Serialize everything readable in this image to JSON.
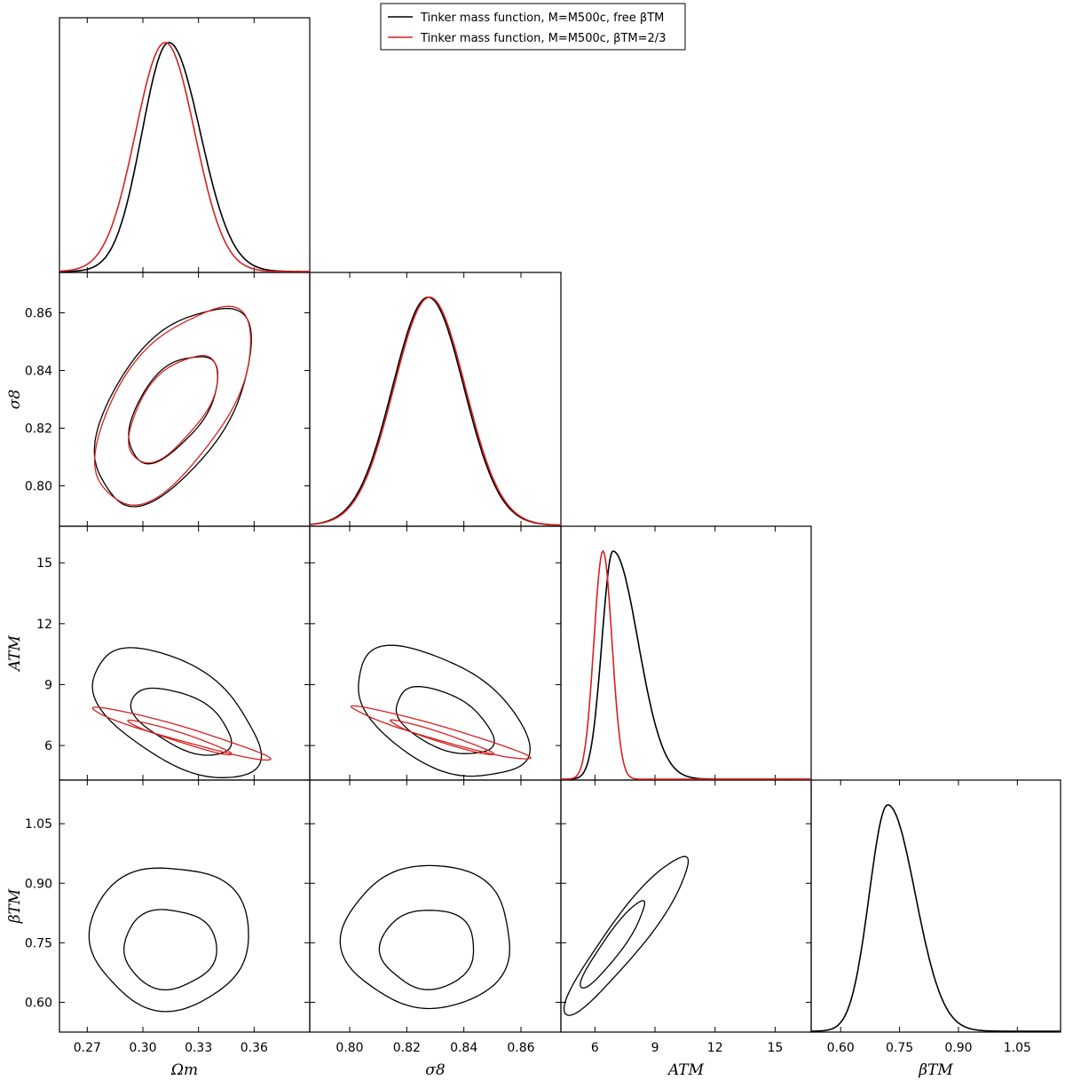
{
  "legend": {
    "placement": "top-center",
    "entries": [
      {
        "label": "Tinker mass function, M=M500c, free βTM",
        "color": "#000000"
      },
      {
        "label": "Tinker mass function, M=M500c, βTM=2/3",
        "color": "#d62020"
      }
    ]
  },
  "chart_data": {
    "type": "corner",
    "parameters": [
      {
        "key": "om",
        "label": "Ωm",
        "range": [
          0.255,
          0.39
        ],
        "ticks": [
          0.27,
          0.3,
          0.33,
          0.36
        ],
        "tick_labels": [
          "0.27",
          "0.30",
          "0.33",
          "0.36"
        ]
      },
      {
        "key": "s8",
        "label": "σ8",
        "range": [
          0.786,
          0.874
        ],
        "ticks": [
          0.8,
          0.82,
          0.84,
          0.86
        ],
        "tick_labels": [
          "0.80",
          "0.82",
          "0.84",
          "0.86"
        ]
      },
      {
        "key": "atm",
        "label": "ATM",
        "range": [
          4.3,
          16.8
        ],
        "ticks": [
          6,
          9,
          12,
          15
        ],
        "tick_labels": [
          "6",
          "9",
          "12",
          "15"
        ]
      },
      {
        "key": "btm",
        "label": "βTM",
        "range": [
          0.525,
          1.16
        ],
        "ticks": [
          0.6,
          0.75,
          0.9,
          1.05
        ],
        "tick_labels": [
          "0.60",
          "0.75",
          "0.90",
          "1.05"
        ]
      }
    ],
    "series": [
      {
        "name": "Tinker mass function, M=M500c, free βTM",
        "color": "#000000",
        "marginals": {
          "om": {
            "peak": 0.314,
            "sigma_left": 0.0145,
            "sigma_right": 0.017
          },
          "s8": {
            "peak": 0.8275,
            "sigma_left": 0.0125,
            "sigma_right": 0.0125
          },
          "atm": {
            "peak": 6.9,
            "sigma_left": 0.55,
            "sigma_right": 1.25
          },
          "btm": {
            "peak": 0.72,
            "sigma_left": 0.047,
            "sigma_right": 0.07
          }
        },
        "contours": [
          {
            "pair": [
              "om",
              "s8"
            ],
            "level": "68%",
            "center": [
              0.316,
              0.827
            ],
            "radius_x": 0.024,
            "radius_y": 0.0185,
            "rho": 0.55
          },
          {
            "pair": [
              "om",
              "s8"
            ],
            "level": "95%",
            "center": [
              0.316,
              0.828
            ],
            "radius_x": 0.042,
            "radius_y": 0.034,
            "rho": 0.55
          },
          {
            "pair": [
              "om",
              "atm"
            ],
            "level": "68%",
            "center": [
              0.321,
              7.2
            ],
            "radius_x": 0.027,
            "radius_y": 1.65,
            "rho": -0.55
          },
          {
            "pair": [
              "om",
              "atm"
            ],
            "level": "95%",
            "center": [
              0.318,
              7.6
            ],
            "radius_x": 0.045,
            "radius_y": 3.2,
            "rho": -0.55
          },
          {
            "pair": [
              "s8",
              "atm"
            ],
            "level": "68%",
            "center": [
              0.833,
              7.2
            ],
            "radius_x": 0.017,
            "radius_y": 1.65,
            "rho": -0.5
          },
          {
            "pair": [
              "s8",
              "atm"
            ],
            "level": "95%",
            "center": [
              0.832,
              7.6
            ],
            "radius_x": 0.03,
            "radius_y": 3.2,
            "rho": -0.5
          },
          {
            "pair": [
              "om",
              "btm"
            ],
            "level": "68%",
            "center": [
              0.3145,
              0.735
            ],
            "radius_x": 0.025,
            "radius_y": 0.1,
            "rho": 0.0
          },
          {
            "pair": [
              "om",
              "btm"
            ],
            "level": "95%",
            "center": [
              0.3145,
              0.765
            ],
            "radius_x": 0.043,
            "radius_y": 0.18,
            "rho": 0.0
          },
          {
            "pair": [
              "s8",
              "btm"
            ],
            "level": "68%",
            "center": [
              0.8275,
              0.735
            ],
            "radius_x": 0.0165,
            "radius_y": 0.1,
            "rho": 0.0
          },
          {
            "pair": [
              "s8",
              "btm"
            ],
            "level": "95%",
            "center": [
              0.8275,
              0.765
            ],
            "radius_x": 0.0295,
            "radius_y": 0.18,
            "rho": 0.0
          },
          {
            "pair": [
              "atm",
              "btm"
            ],
            "level": "68%",
            "center": [
              6.9,
              0.745
            ],
            "radius_x": 1.6,
            "radius_y": 0.11,
            "rho": 0.93
          },
          {
            "pair": [
              "atm",
              "btm"
            ],
            "level": "95%",
            "center": [
              7.6,
              0.77
            ],
            "radius_x": 3.1,
            "radius_y": 0.2,
            "rho": 0.93
          }
        ]
      },
      {
        "name": "Tinker mass function, M=M500c, βTM=2/3",
        "color": "#d62020",
        "marginals": {
          "om": {
            "peak": 0.312,
            "sigma_left": 0.016,
            "sigma_right": 0.016
          },
          "s8": {
            "peak": 0.828,
            "sigma_left": 0.0125,
            "sigma_right": 0.0125
          },
          "atm": {
            "peak": 6.4,
            "sigma_left": 0.45,
            "sigma_right": 0.45
          }
        },
        "contours": [
          {
            "pair": [
              "om",
              "s8"
            ],
            "level": "68%",
            "center": [
              0.316,
              0.827
            ],
            "radius_x": 0.024,
            "radius_y": 0.0185,
            "rho": 0.6
          },
          {
            "pair": [
              "om",
              "s8"
            ],
            "level": "95%",
            "center": [
              0.316,
              0.828
            ],
            "radius_x": 0.042,
            "radius_y": 0.034,
            "rho": 0.6
          },
          {
            "pair": [
              "om",
              "atm"
            ],
            "level": "68%",
            "center": [
              0.32,
              6.4
            ],
            "radius_x": 0.028,
            "radius_y": 0.85,
            "rho": -0.96
          },
          {
            "pair": [
              "om",
              "atm"
            ],
            "level": "95%",
            "center": [
              0.32,
              6.6
            ],
            "radius_x": 0.048,
            "radius_y": 1.3,
            "rho": -0.96
          },
          {
            "pair": [
              "s8",
              "atm"
            ],
            "level": "68%",
            "center": [
              0.832,
              6.4
            ],
            "radius_x": 0.018,
            "radius_y": 0.85,
            "rho": -0.96
          },
          {
            "pair": [
              "s8",
              "atm"
            ],
            "level": "95%",
            "center": [
              0.832,
              6.6
            ],
            "radius_x": 0.031,
            "radius_y": 1.3,
            "rho": -0.96
          }
        ]
      }
    ]
  }
}
